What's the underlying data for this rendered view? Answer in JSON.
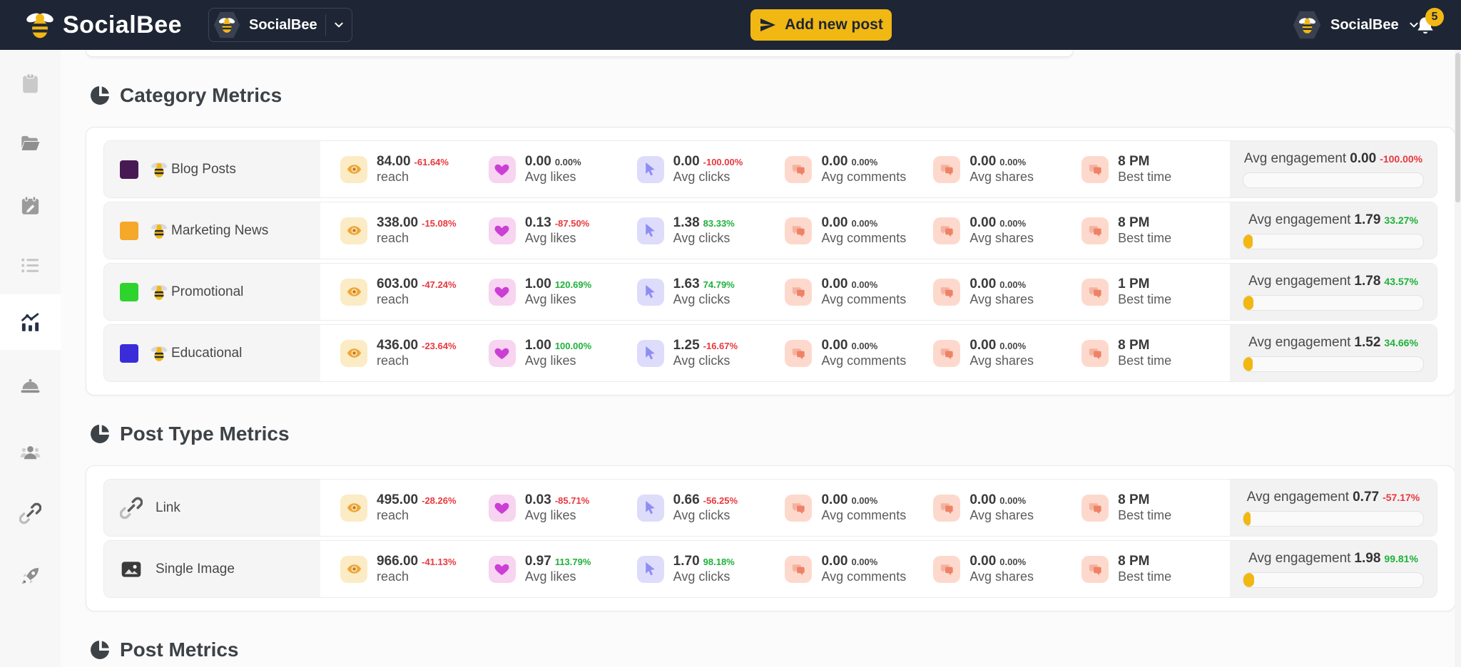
{
  "navbar": {
    "brand": "SocialBee",
    "workspace_name": "SocialBee",
    "add_post_label": "Add new post",
    "account_name": "SocialBee",
    "notification_count": "5"
  },
  "sidebar": {
    "items": [
      {
        "icon": "clipboard-icon",
        "active": false
      },
      {
        "icon": "folder-icon",
        "active": false
      },
      {
        "icon": "calendar-icon",
        "active": false
      },
      {
        "icon": "list-icon",
        "active": false
      },
      {
        "icon": "analytics-icon",
        "active": true
      },
      {
        "icon": "cloche-icon",
        "active": false
      },
      {
        "icon": "users-icon",
        "active": false
      },
      {
        "icon": "link-icon",
        "active": false
      },
      {
        "icon": "rocket-icon",
        "active": false
      }
    ]
  },
  "labels": {
    "avg_engagement": "Avg engagement"
  },
  "sections": [
    {
      "title": "Category Metrics",
      "rows": [
        {
          "kind": "category",
          "label": "Blog Posts",
          "swatch_color": "#481a54",
          "metrics": [
            {
              "value": "84.00",
              "delta": "-61.64%",
              "trend": "down",
              "label": "reach"
            },
            {
              "value": "0.00",
              "delta": "0.00%",
              "trend": "flat",
              "label": "Avg likes"
            },
            {
              "value": "0.00",
              "delta": "-100.00%",
              "trend": "down",
              "label": "Avg clicks"
            },
            {
              "value": "0.00",
              "delta": "0.00%",
              "trend": "flat",
              "label": "Avg comments"
            },
            {
              "value": "0.00",
              "delta": "0.00%",
              "trend": "flat",
              "label": "Avg shares"
            }
          ],
          "best_time": {
            "value": "8 PM",
            "label": "Best time"
          },
          "engagement": {
            "value": "0.00",
            "delta": "-100.00%",
            "trend": "down",
            "bar_fill_pct": 0
          }
        },
        {
          "kind": "category",
          "label": "Marketing News",
          "swatch_color": "#f5a82a",
          "metrics": [
            {
              "value": "338.00",
              "delta": "-15.08%",
              "trend": "down",
              "label": "reach"
            },
            {
              "value": "0.13",
              "delta": "-87.50%",
              "trend": "down",
              "label": "Avg likes"
            },
            {
              "value": "1.38",
              "delta": "83.33%",
              "trend": "up",
              "label": "Avg clicks"
            },
            {
              "value": "0.00",
              "delta": "0.00%",
              "trend": "flat",
              "label": "Avg comments"
            },
            {
              "value": "0.00",
              "delta": "0.00%",
              "trend": "flat",
              "label": "Avg shares"
            }
          ],
          "best_time": {
            "value": "8 PM",
            "label": "Best time"
          },
          "engagement": {
            "value": "1.79",
            "delta": "33.27%",
            "trend": "up",
            "bar_fill_pct": 5
          }
        },
        {
          "kind": "category",
          "label": "Promotional",
          "swatch_color": "#2ed32e",
          "metrics": [
            {
              "value": "603.00",
              "delta": "-47.24%",
              "trend": "down",
              "label": "reach"
            },
            {
              "value": "1.00",
              "delta": "120.69%",
              "trend": "up",
              "label": "Avg likes"
            },
            {
              "value": "1.63",
              "delta": "74.79%",
              "trend": "up",
              "label": "Avg clicks"
            },
            {
              "value": "0.00",
              "delta": "0.00%",
              "trend": "flat",
              "label": "Avg comments"
            },
            {
              "value": "0.00",
              "delta": "0.00%",
              "trend": "flat",
              "label": "Avg shares"
            }
          ],
          "best_time": {
            "value": "1 PM",
            "label": "Best time"
          },
          "engagement": {
            "value": "1.78",
            "delta": "43.57%",
            "trend": "up",
            "bar_fill_pct": 5.5
          }
        },
        {
          "kind": "category",
          "label": "Educational",
          "swatch_color": "#3a2cd8",
          "metrics": [
            {
              "value": "436.00",
              "delta": "-23.64%",
              "trend": "down",
              "label": "reach"
            },
            {
              "value": "1.00",
              "delta": "100.00%",
              "trend": "up",
              "label": "Avg likes"
            },
            {
              "value": "1.25",
              "delta": "-16.67%",
              "trend": "down",
              "label": "Avg clicks"
            },
            {
              "value": "0.00",
              "delta": "0.00%",
              "trend": "flat",
              "label": "Avg comments"
            },
            {
              "value": "0.00",
              "delta": "0.00%",
              "trend": "flat",
              "label": "Avg shares"
            }
          ],
          "best_time": {
            "value": "8 PM",
            "label": "Best time"
          },
          "engagement": {
            "value": "1.52",
            "delta": "34.66%",
            "trend": "up",
            "bar_fill_pct": 5
          }
        }
      ]
    },
    {
      "title": "Post Type Metrics",
      "rows": [
        {
          "kind": "post_type",
          "type_icon": "link-icon",
          "label": "Link",
          "metrics": [
            {
              "value": "495.00",
              "delta": "-28.26%",
              "trend": "down",
              "label": "reach"
            },
            {
              "value": "0.03",
              "delta": "-85.71%",
              "trend": "down",
              "label": "Avg likes"
            },
            {
              "value": "0.66",
              "delta": "-56.25%",
              "trend": "down",
              "label": "Avg clicks"
            },
            {
              "value": "0.00",
              "delta": "0.00%",
              "trend": "flat",
              "label": "Avg comments"
            },
            {
              "value": "0.00",
              "delta": "0.00%",
              "trend": "flat",
              "label": "Avg shares"
            }
          ],
          "best_time": {
            "value": "8 PM",
            "label": "Best time"
          },
          "engagement": {
            "value": "0.77",
            "delta": "-57.17%",
            "trend": "down",
            "bar_fill_pct": 4
          }
        },
        {
          "kind": "post_type",
          "type_icon": "image-icon",
          "label": "Single Image",
          "metrics": [
            {
              "value": "966.00",
              "delta": "-41.13%",
              "trend": "down",
              "label": "reach"
            },
            {
              "value": "0.97",
              "delta": "113.79%",
              "trend": "up",
              "label": "Avg likes"
            },
            {
              "value": "1.70",
              "delta": "98.18%",
              "trend": "up",
              "label": "Avg clicks"
            },
            {
              "value": "0.00",
              "delta": "0.00%",
              "trend": "flat",
              "label": "Avg comments"
            },
            {
              "value": "0.00",
              "delta": "0.00%",
              "trend": "flat",
              "label": "Avg shares"
            }
          ],
          "best_time": {
            "value": "8 PM",
            "label": "Best time"
          },
          "engagement": {
            "value": "1.98",
            "delta": "99.81%",
            "trend": "up",
            "bar_fill_pct": 6
          }
        }
      ]
    },
    {
      "title": "Post Metrics",
      "rows": []
    }
  ]
}
